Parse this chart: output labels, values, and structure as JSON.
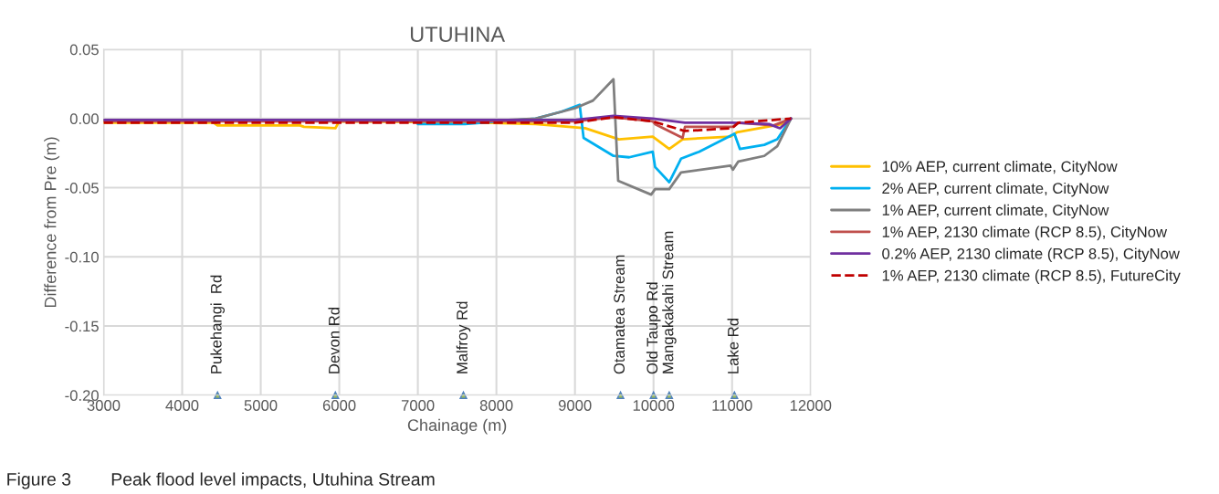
{
  "chart_data": {
    "type": "line",
    "title": "UTUHINA",
    "xlabel": "Chainage (m)",
    "ylabel": "Difference from Pre (m)",
    "xlim": [
      3000,
      12000
    ],
    "xticks": [
      3000,
      4000,
      5000,
      6000,
      7000,
      8000,
      9000,
      10000,
      11000,
      12000
    ],
    "ylim": [
      -0.2,
      0.05
    ],
    "yticks": [
      {
        "value": -0.2,
        "label": "-0.20"
      },
      {
        "value": -0.15,
        "label": "-0.15"
      },
      {
        "value": -0.1,
        "label": "-0.10"
      },
      {
        "value": -0.05,
        "label": "-0.05"
      },
      {
        "value": 0,
        "label": "0.00"
      },
      {
        "value": 0.05,
        "label": "0.05"
      }
    ],
    "grid": true,
    "legend": "right",
    "series": [
      {
        "name": "10% AEP, current climate, CityNow",
        "color": "#ffc000",
        "x": [
          3000,
          4400,
          4450,
          5500,
          5550,
          5950,
          6000,
          7830,
          8500,
          9130,
          9560,
          9990,
          10200,
          10370,
          10980,
          11060,
          11640,
          11750
        ],
        "values": [
          -0.003,
          -0.003,
          -0.005,
          -0.005,
          -0.006,
          -0.007,
          -0.002,
          -0.003,
          -0.004,
          -0.007,
          -0.015,
          -0.013,
          -0.022,
          -0.015,
          -0.013,
          -0.01,
          -0.004,
          0.0
        ]
      },
      {
        "name": "2% AEP, current climate, CityNow",
        "color": "#00b0f0",
        "x": [
          7000,
          7600,
          8500,
          8830,
          9060,
          9110,
          9490,
          9690,
          9990,
          10020,
          10200,
          10350,
          10580,
          11030,
          11100,
          11410,
          11575,
          11750
        ],
        "values": [
          -0.004,
          -0.004,
          0.0,
          0.005,
          0.01,
          -0.014,
          -0.027,
          -0.028,
          -0.024,
          -0.035,
          -0.046,
          -0.029,
          -0.024,
          -0.011,
          -0.022,
          -0.019,
          -0.015,
          0.0
        ]
      },
      {
        "name": "1% AEP, current climate, CityNow",
        "color": "#7f7f7f",
        "x": [
          3000,
          7800,
          8500,
          9000,
          9230,
          9490,
          9550,
          9970,
          10020,
          10200,
          10350,
          10980,
          11010,
          11080,
          11410,
          11575,
          11750
        ],
        "values": [
          -0.001,
          -0.002,
          0.0,
          0.0075,
          0.013,
          0.0285,
          -0.045,
          -0.055,
          -0.051,
          -0.051,
          -0.039,
          -0.034,
          -0.037,
          -0.031,
          -0.027,
          -0.02,
          0.0
        ]
      },
      {
        "name": "1% AEP, 2130 climate (RCP 8.5), CityNow",
        "color": "#c0504d",
        "x": [
          3000,
          9000,
          9490,
          9990,
          10020,
          10370,
          10400,
          11010,
          11080,
          11530,
          11750
        ],
        "values": [
          -0.002,
          -0.002,
          0.001,
          -0.002,
          -0.004,
          -0.014,
          -0.006,
          -0.006,
          -0.003,
          -0.005,
          0.0
        ]
      },
      {
        "name": "0.2% AEP, 2130 climate (RCP 8.5), CityNow",
        "color": "#7030a0",
        "x": [
          3000,
          9000,
          9490,
          9990,
          10400,
          11000,
          11470,
          11610,
          11750
        ],
        "values": [
          -0.001,
          -0.001,
          0.002,
          0.0,
          -0.003,
          -0.003,
          -0.004,
          -0.007,
          0.0
        ]
      },
      {
        "name": "1% AEP, 2130 climate (RCP 8.5), FutureCity",
        "color": "#c00000",
        "line_style": "dashed",
        "x": [
          3000,
          9000,
          9490,
          9990,
          10400,
          11000,
          11080,
          11750
        ],
        "values": [
          -0.003,
          -0.003,
          0.001,
          -0.002,
          -0.009,
          -0.007,
          -0.003,
          0.0
        ]
      }
    ],
    "annotations": [
      {
        "text": "Pukehangi  Rd",
        "x": 4450,
        "y": -0.2
      },
      {
        "text": "Devon Rd",
        "x": 5950,
        "y": -0.2
      },
      {
        "text": "Malfroy Rd",
        "x": 7580,
        "y": -0.2
      },
      {
        "text": "Otamatea Stream",
        "x": 9580,
        "y": -0.2
      },
      {
        "text": "Old Taupo Rd",
        "x": 10000,
        "y": -0.2
      },
      {
        "text": "Mangakakahi Stream",
        "x": 10200,
        "y": -0.2
      },
      {
        "text": "Lake Rd",
        "x": 11030,
        "y": -0.2
      },
      "Figure 3        Peak flood level impacts, Utuhina Stream"
    ]
  }
}
